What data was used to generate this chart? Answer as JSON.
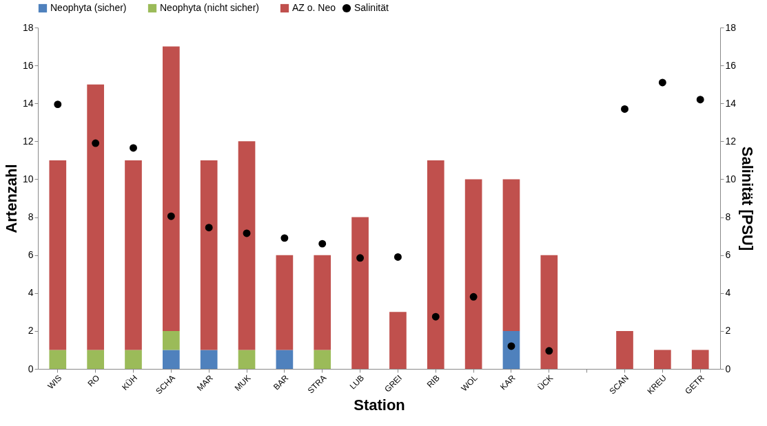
{
  "chart_data": {
    "type": "bar",
    "stacked": true,
    "xlabel": "Station",
    "ylabel": "Artenzahl",
    "y2label": "Salinität [PSU]",
    "categories": [
      "WIS",
      "RO",
      "KÜH",
      "SCHA",
      "MAR",
      "MUK",
      "BAR",
      "STRA",
      "LUB",
      "GREI",
      "RIB",
      "WOL",
      "KAR",
      "ÜCK",
      null,
      "SCAN",
      "KREU",
      "GETR"
    ],
    "series": [
      {
        "name": "Neophyta (sicher)",
        "color": "#4f81bd",
        "values": [
          0,
          0,
          0,
          1,
          1,
          0,
          1,
          0,
          0,
          0,
          0,
          0,
          2,
          0,
          null,
          0,
          0,
          0
        ]
      },
      {
        "name": "Neophyta (nicht sicher)",
        "color": "#9bbb59",
        "values": [
          1,
          1,
          1,
          1,
          0,
          1,
          0,
          1,
          0,
          0,
          0,
          0,
          0,
          0,
          null,
          0,
          0,
          0
        ]
      },
      {
        "name": "AZ o. Neo",
        "color": "#c0504d",
        "values": [
          10,
          14,
          10,
          15,
          10,
          11,
          5,
          5,
          8,
          3,
          11,
          10,
          8,
          6,
          null,
          2,
          1,
          1
        ]
      },
      {
        "name": "Salinität",
        "type": "scatter",
        "axis": "y2",
        "color": "#000000",
        "marker": "circle",
        "values": [
          13.95,
          11.9,
          11.65,
          8.05,
          7.45,
          7.15,
          6.9,
          6.6,
          5.85,
          5.9,
          2.75,
          3.8,
          1.2,
          0.95,
          null,
          13.7,
          15.1,
          14.2
        ]
      }
    ],
    "ylim": [
      0,
      18
    ],
    "yticks": [
      0,
      2,
      4,
      6,
      8,
      10,
      12,
      14,
      16,
      18
    ],
    "y2lim": [
      0,
      18
    ],
    "y2ticks": [
      0,
      2,
      4,
      6,
      8,
      10,
      12,
      14,
      16,
      18
    ],
    "grid": false,
    "legend": "top"
  }
}
